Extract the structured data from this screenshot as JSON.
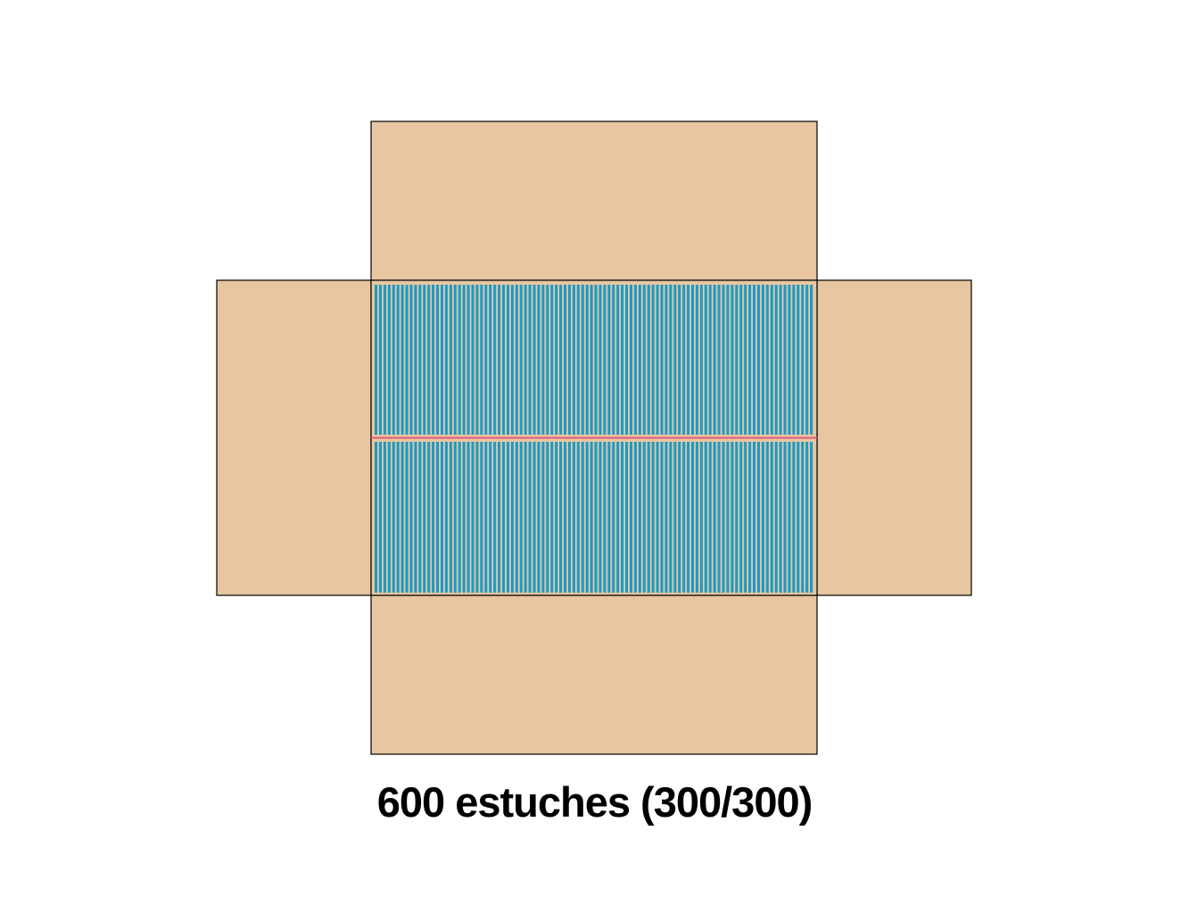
{
  "caption": "600 estuches (300/300)",
  "packing": {
    "total_cases": 600,
    "rows": [
      {
        "row": "top",
        "cases": 300
      },
      {
        "row": "bottom",
        "cases": 300
      }
    ],
    "stripes_drawn_per_row": 100
  },
  "colors": {
    "cardboard": "#e8c6a1",
    "outline": "#000000",
    "case_blue": "#1a9bc7",
    "case_gap": "#e8c6a1",
    "divider": "#e05a78"
  }
}
